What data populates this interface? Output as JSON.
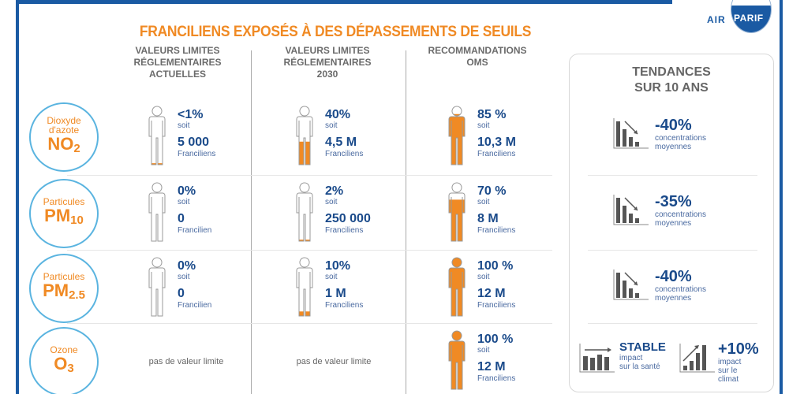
{
  "logo": {
    "left": "AIR",
    "right": "PARIF"
  },
  "title": "FRANCILIENS EXPOSÉS À DES DÉPASSEMENTS DE SEUILS",
  "columns": [
    {
      "lines": [
        "VALEURS LIMITES",
        "RÉGLEMENTAIRES",
        "ACTUELLES"
      ]
    },
    {
      "lines": [
        "VALEURS LIMITES",
        "RÉGLEMENTAIRES",
        "2030"
      ]
    },
    {
      "lines": [
        "RECOMMANDATIONS",
        "OMS"
      ]
    }
  ],
  "rows": [
    {
      "name": "Dioxyde d'azote",
      "formula": "NO",
      "sub": "2",
      "cells": [
        {
          "pct": "<1%",
          "soit": "soit",
          "num": "5 000",
          "unit": "Franciliens",
          "fill": 0.05
        },
        {
          "pct": "40%",
          "soit": "soit",
          "num": "4,5 M",
          "unit": "Franciliens",
          "fill": 0.4
        },
        {
          "pct": "85 %",
          "soit": "soit",
          "num": "10,3 M",
          "unit": "Franciliens",
          "fill": 0.85
        }
      ]
    },
    {
      "name": "Particules",
      "formula": "PM",
      "sub": "10",
      "cells": [
        {
          "pct": "0%",
          "soit": "soit",
          "num": "0",
          "unit": "Francilien",
          "fill": 0
        },
        {
          "pct": "2%",
          "soit": "soit",
          "num": "250 000",
          "unit": "Franciliens",
          "fill": 0.05
        },
        {
          "pct": "70 %",
          "soit": "soit",
          "num": "8 M",
          "unit": "Franciliens",
          "fill": 0.7
        }
      ]
    },
    {
      "name": "Particules",
      "formula": "PM",
      "sub": "2.5",
      "cells": [
        {
          "pct": "0%",
          "soit": "soit",
          "num": "0",
          "unit": "Francilien",
          "fill": 0
        },
        {
          "pct": "10%",
          "soit": "soit",
          "num": "1 M",
          "unit": "Franciliens",
          "fill": 0.1
        },
        {
          "pct": "100 %",
          "soit": "soit",
          "num": "12 M",
          "unit": "Franciliens",
          "fill": 1
        }
      ]
    },
    {
      "name": "Ozone",
      "formula": "O",
      "sub": "3",
      "no_limit": "pas de valeur limite",
      "cells": [
        null,
        null,
        {
          "pct": "100 %",
          "soit": "soit",
          "num": "12 M",
          "unit": "Franciliens",
          "fill": 1
        }
      ]
    }
  ],
  "trends": {
    "title": [
      "TENDANCES",
      "SUR 10 ANS"
    ],
    "items": [
      {
        "value": "-40%",
        "line1": "concentrations",
        "line2": "moyennes",
        "icon": "chart-down-icon"
      },
      {
        "value": "-35%",
        "line1": "concentrations",
        "line2": "moyennes",
        "icon": "chart-down-icon"
      },
      {
        "value": "-40%",
        "line1": "concentrations",
        "line2": "moyennes",
        "icon": "chart-down-icon"
      }
    ],
    "ozone": [
      {
        "value": "STABLE",
        "line1": "impact",
        "line2": "sur la santé",
        "icon": "chart-flat-icon"
      },
      {
        "value": "+10%",
        "line1": "impact",
        "line2": "sur le climat",
        "icon": "chart-up-icon"
      }
    ]
  },
  "colors": {
    "orange": "#f08a24",
    "blue": "#1a5aa3",
    "person_outline": "#999999"
  }
}
